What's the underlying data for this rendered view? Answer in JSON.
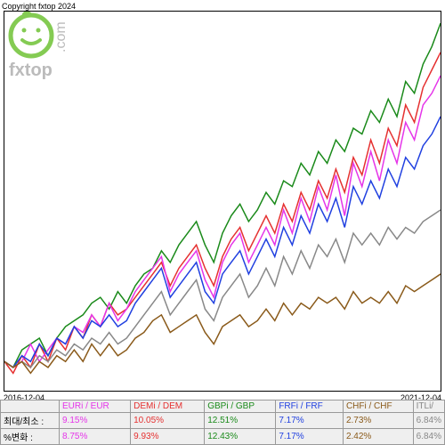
{
  "copyright": "Copyright fxtop 2024",
  "watermark": {
    "brand_text": "fxtop",
    "domain_text": ".com",
    "face_color": "#7ec94a",
    "text_color": "#b8b8b8"
  },
  "chart": {
    "type": "line",
    "background": "#ffffff",
    "border_color": "#000000",
    "x_start_label": "2016-12-04",
    "x_end_label": "2021-12-04",
    "ylim": [
      95,
      160
    ],
    "line_width": 1.5,
    "series": [
      {
        "name": "GBPi/GBP",
        "color": "#1a8a1a",
        "y": [
          100,
          99,
          102,
          103,
          104,
          101,
          104,
          106,
          107,
          108,
          110,
          111,
          109,
          112,
          110,
          113,
          115,
          116,
          119,
          117,
          120,
          122,
          124,
          120,
          117,
          122,
          125,
          127,
          124,
          126,
          129,
          127,
          131,
          130,
          134,
          132,
          136,
          134,
          138,
          136,
          140,
          139,
          143,
          141,
          145,
          142,
          148,
          146,
          151,
          154,
          158
        ]
      },
      {
        "name": "DEMi/DEM",
        "color": "#e53030",
        "y": [
          100,
          98,
          101,
          99,
          103,
          100,
          104,
          102,
          106,
          104,
          108,
          106,
          110,
          108,
          109,
          111,
          113,
          115,
          117,
          113,
          116,
          118,
          120,
          116,
          113,
          118,
          121,
          123,
          119,
          122,
          125,
          122,
          127,
          124,
          129,
          126,
          131,
          128,
          133,
          129,
          135,
          132,
          138,
          134,
          140,
          137,
          144,
          141,
          147,
          150,
          153
        ]
      },
      {
        "name": "EURi/EUR",
        "color": "#e535e9",
        "y": [
          100,
          99,
          100,
          103,
          100,
          102,
          104,
          103,
          106,
          105,
          108,
          106,
          110,
          107,
          109,
          112,
          114,
          116,
          118,
          112,
          115,
          117,
          119,
          114,
          111,
          117,
          120,
          122,
          117,
          120,
          123,
          120,
          126,
          122,
          128,
          124,
          130,
          126,
          132,
          125,
          134,
          130,
          136,
          131,
          138,
          134,
          141,
          138,
          144,
          146,
          149
        ]
      },
      {
        "name": "FRFi/FRF",
        "color": "#2040e0",
        "y": [
          100,
          99,
          101,
          100,
          103,
          101,
          104,
          103,
          106,
          104,
          107,
          106,
          108,
          106,
          107,
          110,
          112,
          114,
          116,
          111,
          113,
          115,
          117,
          112,
          110,
          115,
          117,
          119,
          115,
          118,
          121,
          118,
          123,
          120,
          125,
          122,
          127,
          124,
          128,
          123,
          130,
          127,
          131,
          128,
          133,
          130,
          135,
          133,
          137,
          139,
          142
        ]
      },
      {
        "name": "ITLi/ITL",
        "color": "#888888",
        "y": [
          100,
          99,
          100,
          99,
          101,
          100,
          102,
          101,
          103,
          102,
          104,
          103,
          105,
          103,
          104,
          106,
          108,
          110,
          112,
          108,
          110,
          112,
          114,
          109,
          107,
          111,
          113,
          115,
          111,
          113,
          116,
          113,
          118,
          115,
          119,
          116,
          120,
          118,
          121,
          117,
          122,
          120,
          122,
          120,
          123,
          121,
          123,
          122,
          124,
          125,
          126
        ]
      },
      {
        "name": "CHFi/CHF",
        "color": "#8a5a1a",
        "y": [
          100,
          99,
          100,
          98,
          100,
          99,
          101,
          100,
          102,
          100,
          103,
          101,
          103,
          101,
          102,
          104,
          105,
          107,
          108,
          105,
          106,
          107,
          108,
          105,
          103,
          106,
          107,
          108,
          106,
          107,
          109,
          107,
          110,
          108,
          110,
          109,
          111,
          110,
          111,
          109,
          112,
          110,
          111,
          110,
          112,
          110,
          113,
          112,
          113,
          114,
          115
        ]
      }
    ]
  },
  "table": {
    "row1_label": "최대/최소 :",
    "row2_label": "%변화 :",
    "columns": [
      {
        "header": "EURi / EUR",
        "v1": "9.15%",
        "v2": "8.75%",
        "cls": "c0"
      },
      {
        "header": "DEMi / DEM",
        "v1": "10.05%",
        "v2": "9.93%",
        "cls": "c1"
      },
      {
        "header": "GBPi / GBP",
        "v1": "12.51%",
        "v2": "12.43%",
        "cls": "c2"
      },
      {
        "header": "FRFi / FRF",
        "v1": "7.17%",
        "v2": "7.17%",
        "cls": "c3"
      },
      {
        "header": "CHFi / CHF",
        "v1": "2.73%",
        "v2": "2.42%",
        "cls": "c4"
      },
      {
        "header": "ITLi/",
        "v1": "6.84%",
        "v2": "6.84%",
        "cls": "c5"
      }
    ]
  }
}
